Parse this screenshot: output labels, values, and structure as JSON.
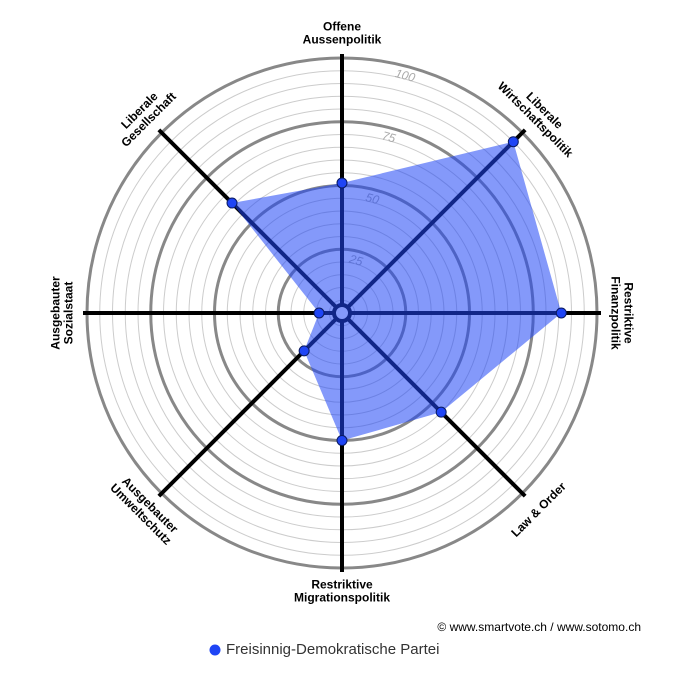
{
  "chart_data": {
    "type": "radar",
    "categories": [
      [
        "Offene",
        "Aussenpolitik"
      ],
      [
        "Liberale",
        "Wirtschaftspolitik"
      ],
      [
        "Restriktive",
        "Finanzpolitik"
      ],
      [
        "Law & Order"
      ],
      [
        "Restriktive",
        "Migrationspolitik"
      ],
      [
        "Ausgebauter",
        "Umweltschutz"
      ],
      [
        "Ausgebauter",
        "Sozialstaat"
      ],
      [
        "Liberale",
        "Gesellschaft"
      ]
    ],
    "series": [
      {
        "name": "Freisinnig-Demokratische Partei",
        "color": "#1f45f5",
        "values": [
          51,
          95,
          86,
          55,
          50,
          21,
          9,
          61
        ]
      }
    ],
    "rlim": [
      0,
      100
    ],
    "rticks": [
      25,
      50,
      75,
      100
    ],
    "credit": "© www.smartvote.ch / www.sotomo.ch"
  }
}
